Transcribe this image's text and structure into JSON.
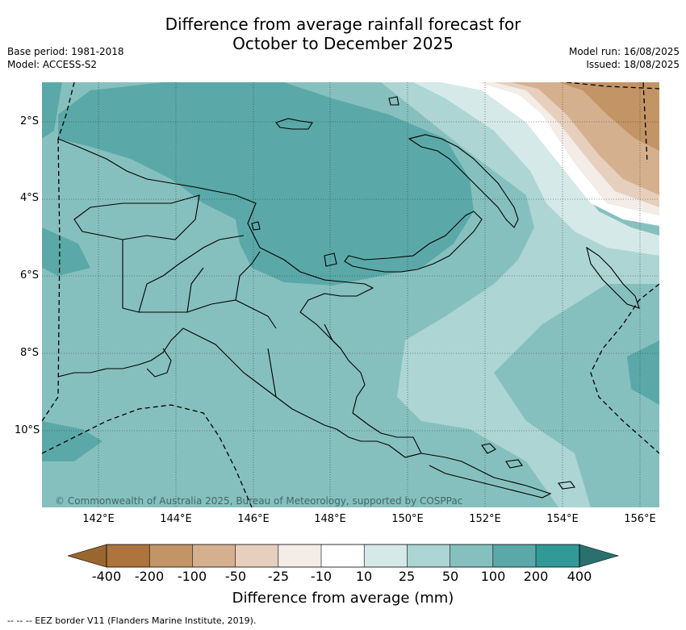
{
  "title": {
    "line1": "Difference from average rainfall forecast for",
    "line2": "October to December 2025"
  },
  "meta_left": {
    "base_period": "Base period: 1981-2018",
    "model": "Model: ACCESS-S2"
  },
  "meta_right": {
    "model_run": "Model run: 16/08/2025",
    "issued": "Issued: 18/08/2025"
  },
  "lat_labels": [
    "2°S",
    "4°S",
    "6°S",
    "8°S",
    "10°S"
  ],
  "lon_labels": [
    "142°E",
    "144°E",
    "146°E",
    "148°E",
    "150°E",
    "152°E",
    "154°E",
    "156°E"
  ],
  "copyright": "© Commonwealth of Australia 2025, Bureau of Meteorology, supported by COSPPac",
  "colorbar": {
    "title": "Difference from average (mm)",
    "labels": [
      "-400",
      "-200",
      "-100",
      "-50",
      "-25",
      "-10",
      "10",
      "25",
      "50",
      "100",
      "200",
      "400"
    ],
    "colors": {
      "lt_-400": "#9a6630",
      "-400_-200": "#ad743e",
      "-200_-100": "#c29466",
      "-100_-50": "#d5b08f",
      "-50_-25": "#e6d0bd",
      "-25_-10": "#f3ece7",
      "-10_10": "#ffffff",
      "10_25": "#d5e9e8",
      "25_50": "#acd5d4",
      "50_100": "#86c0be",
      "100_200": "#5aa9a8",
      "200_400": "#319a97",
      "gt_400": "#2a706e"
    }
  },
  "footnote": "--  --  -- EEZ border V11 (Flanders Marine Institute, 2019)."
}
